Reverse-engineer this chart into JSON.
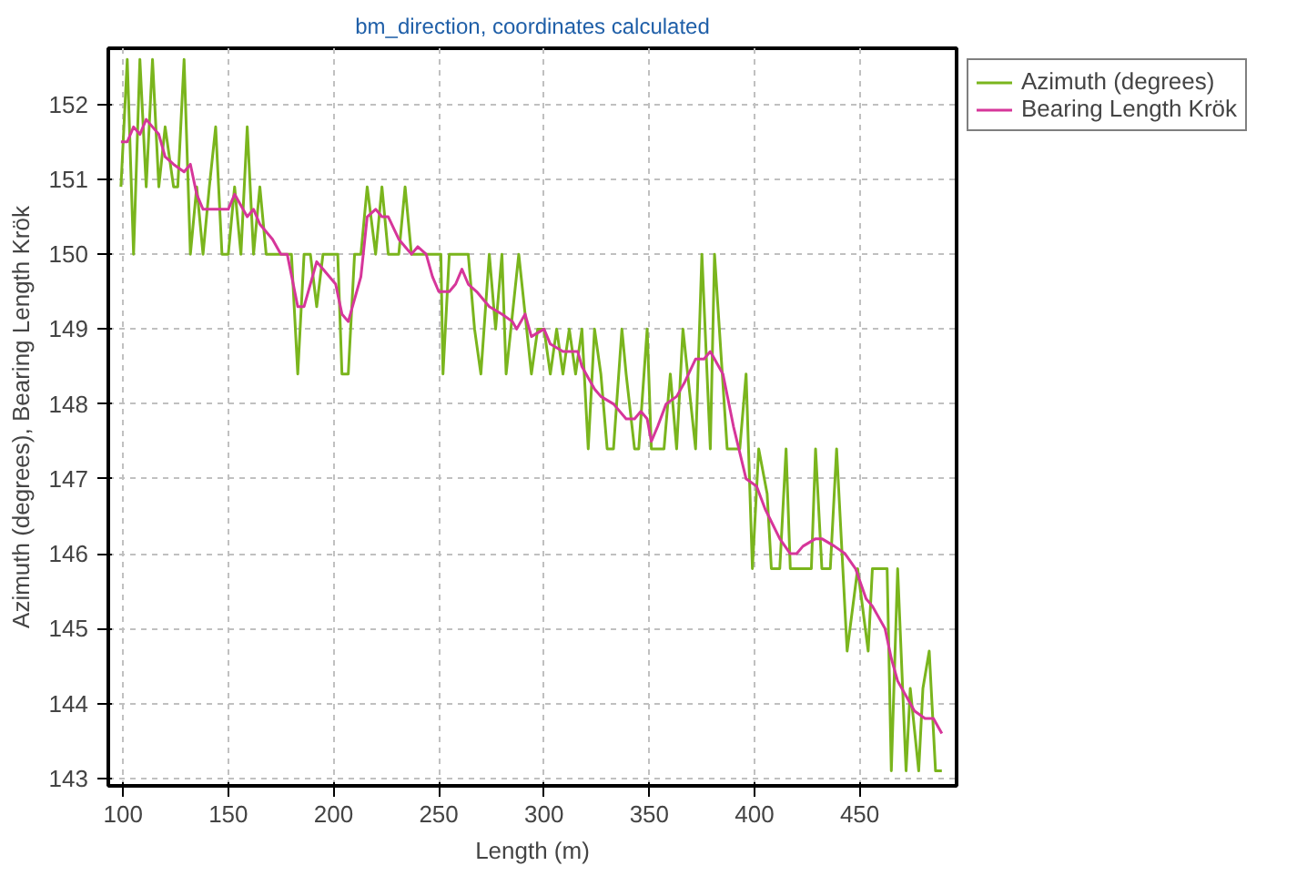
{
  "chart_data": {
    "type": "line",
    "title": "bm_direction, coordinates calculated",
    "xlabel": "Length (m)",
    "ylabel": "Azimuth (degrees), Bearing Length Krök",
    "xlim": [
      93,
      496
    ],
    "ylim": [
      142.9,
      152.75
    ],
    "xticks": [
      100,
      150,
      200,
      250,
      300,
      350,
      400,
      450
    ],
    "yticks": [
      143,
      144,
      145,
      146,
      147,
      148,
      149,
      150,
      151,
      152
    ],
    "grid": true,
    "legend": "top right",
    "line_style": "solid",
    "marker": "none",
    "series": [
      {
        "name": "Azimuth (degrees)",
        "color": "#7ab51d",
        "x": [
          99,
          102,
          105,
          108,
          111,
          114,
          117,
          120,
          124,
          126,
          129,
          132,
          135,
          138,
          141,
          144,
          147,
          150,
          153,
          156,
          159,
          162,
          165,
          168,
          175,
          180,
          183,
          186,
          189,
          192,
          195,
          202,
          204,
          207,
          210,
          213,
          216,
          220,
          223,
          226,
          231,
          234,
          237,
          251,
          252,
          255,
          264,
          267,
          270,
          274,
          277,
          280,
          282,
          288,
          294,
          297,
          300,
          303,
          306,
          309,
          312,
          315,
          318,
          321,
          324,
          327,
          330,
          333,
          337,
          339,
          343,
          345,
          349,
          351,
          357,
          360,
          363,
          366,
          372,
          375,
          379,
          381,
          387,
          393,
          396,
          399,
          402,
          406,
          408,
          412,
          415,
          417,
          427,
          429,
          432,
          436,
          439,
          444,
          449,
          454,
          456,
          463,
          465,
          468,
          472,
          474,
          478,
          480,
          483,
          486,
          489
        ],
        "values": [
          150.9,
          152.6,
          150.0,
          152.6,
          150.9,
          152.6,
          150.9,
          151.7,
          150.9,
          150.9,
          152.6,
          150.0,
          150.9,
          150.0,
          150.9,
          151.7,
          150.0,
          150.0,
          150.9,
          150.0,
          151.7,
          150.0,
          150.9,
          150.0,
          150.0,
          150.0,
          148.4,
          150.0,
          150.0,
          149.3,
          150.0,
          150.0,
          148.4,
          148.4,
          150.0,
          150.0,
          150.9,
          150.0,
          150.9,
          150.0,
          150.0,
          150.9,
          150.0,
          150.0,
          148.4,
          150.0,
          150.0,
          149.0,
          148.4,
          150.0,
          149.0,
          150.0,
          148.4,
          150.0,
          148.4,
          149.0,
          149.0,
          148.4,
          149.0,
          148.4,
          149.0,
          148.4,
          149.0,
          147.4,
          149.0,
          148.4,
          147.4,
          147.4,
          149.0,
          148.4,
          147.4,
          147.4,
          149.0,
          147.4,
          147.4,
          148.4,
          147.4,
          149.0,
          147.4,
          150.0,
          147.4,
          150.0,
          147.4,
          147.4,
          148.4,
          145.8,
          147.4,
          146.8,
          145.8,
          145.8,
          147.4,
          145.8,
          145.8,
          147.4,
          145.8,
          145.8,
          147.4,
          144.7,
          145.8,
          144.7,
          145.8,
          145.8,
          143.1,
          145.8,
          143.1,
          144.2,
          143.1,
          144.2,
          144.7,
          143.1,
          143.1
        ]
      },
      {
        "name": "Bearing Length Krök",
        "color": "#d6369a",
        "x": [
          99,
          102,
          105,
          108,
          111,
          114,
          117,
          120,
          124,
          129,
          132,
          135,
          138,
          141,
          144,
          147,
          150,
          153,
          159,
          162,
          165,
          171,
          175,
          178,
          183,
          186,
          192,
          195,
          201,
          204,
          207,
          213,
          216,
          220,
          223,
          226,
          231,
          234,
          237,
          240,
          244,
          247,
          250,
          255,
          258,
          261,
          264,
          268,
          274,
          280,
          285,
          287,
          291,
          294,
          300,
          303,
          309,
          316,
          318,
          324,
          327,
          333,
          339,
          343,
          346,
          349,
          351,
          354,
          358,
          363,
          367,
          372,
          376,
          379,
          385,
          390,
          396,
          401,
          405,
          412,
          417,
          420,
          423,
          429,
          432,
          438,
          443,
          448,
          453,
          456,
          462,
          465,
          468,
          472,
          476,
          481,
          485,
          489
        ],
        "values": [
          151.5,
          151.5,
          151.7,
          151.6,
          151.8,
          151.7,
          151.6,
          151.3,
          151.2,
          151.1,
          151.2,
          150.8,
          150.6,
          150.6,
          150.6,
          150.6,
          150.6,
          150.8,
          150.5,
          150.6,
          150.4,
          150.2,
          150.0,
          150.0,
          149.3,
          149.3,
          149.9,
          149.8,
          149.6,
          149.2,
          149.1,
          149.7,
          150.5,
          150.6,
          150.5,
          150.5,
          150.2,
          150.1,
          150.0,
          150.1,
          150.0,
          149.7,
          149.5,
          149.5,
          149.6,
          149.8,
          149.6,
          149.5,
          149.3,
          149.2,
          149.1,
          149.0,
          149.2,
          148.9,
          149.0,
          148.8,
          148.7,
          148.7,
          148.5,
          148.2,
          148.1,
          148.0,
          147.8,
          147.8,
          147.9,
          147.8,
          147.5,
          147.7,
          148.0,
          148.1,
          148.3,
          148.6,
          148.6,
          148.7,
          148.4,
          147.7,
          147.0,
          146.9,
          146.6,
          146.2,
          146.0,
          146.0,
          146.1,
          146.2,
          146.2,
          146.1,
          146.0,
          145.8,
          145.4,
          145.3,
          145.0,
          144.6,
          144.3,
          144.1,
          143.9,
          143.8,
          143.8,
          143.6
        ]
      }
    ]
  }
}
